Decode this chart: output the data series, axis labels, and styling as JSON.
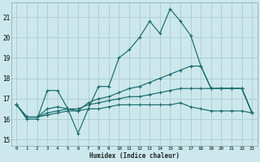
{
  "xlabel": "Humidex (Indice chaleur)",
  "ylabel": "",
  "bg_color": "#cce8ec",
  "grid_color": "#aacccc",
  "line_color": "#1a6b6b",
  "x_ticks": [
    0,
    1,
    2,
    3,
    4,
    5,
    6,
    7,
    8,
    9,
    10,
    11,
    12,
    13,
    14,
    15,
    16,
    17,
    18,
    19,
    20,
    21,
    22,
    23
  ],
  "y_ticks": [
    15,
    16,
    17,
    18,
    19,
    20,
    21
  ],
  "ylim": [
    14.7,
    21.7
  ],
  "xlim": [
    -0.5,
    23.5
  ],
  "series": [
    [
      16.7,
      16.0,
      16.0,
      17.4,
      17.4,
      16.5,
      15.3,
      16.5,
      17.6,
      17.6,
      19.0,
      19.4,
      20.0,
      20.8,
      20.2,
      21.4,
      20.8,
      20.1,
      18.6,
      17.5,
      17.5,
      17.5,
      17.5,
      16.3
    ],
    [
      16.7,
      16.1,
      16.1,
      16.5,
      16.6,
      16.5,
      16.4,
      16.8,
      17.0,
      17.1,
      17.3,
      17.5,
      17.6,
      17.8,
      18.0,
      18.2,
      18.4,
      18.6,
      18.6,
      17.5,
      17.5,
      17.5,
      17.5,
      16.3
    ],
    [
      16.7,
      16.1,
      16.1,
      16.3,
      16.4,
      16.5,
      16.5,
      16.7,
      16.8,
      16.9,
      17.0,
      17.1,
      17.1,
      17.2,
      17.3,
      17.4,
      17.5,
      17.5,
      17.5,
      17.5,
      17.5,
      17.5,
      17.5,
      16.3
    ],
    [
      16.7,
      16.1,
      16.1,
      16.2,
      16.3,
      16.4,
      16.4,
      16.5,
      16.5,
      16.6,
      16.7,
      16.7,
      16.7,
      16.7,
      16.7,
      16.7,
      16.8,
      16.6,
      16.5,
      16.4,
      16.4,
      16.4,
      16.4,
      16.3
    ]
  ]
}
